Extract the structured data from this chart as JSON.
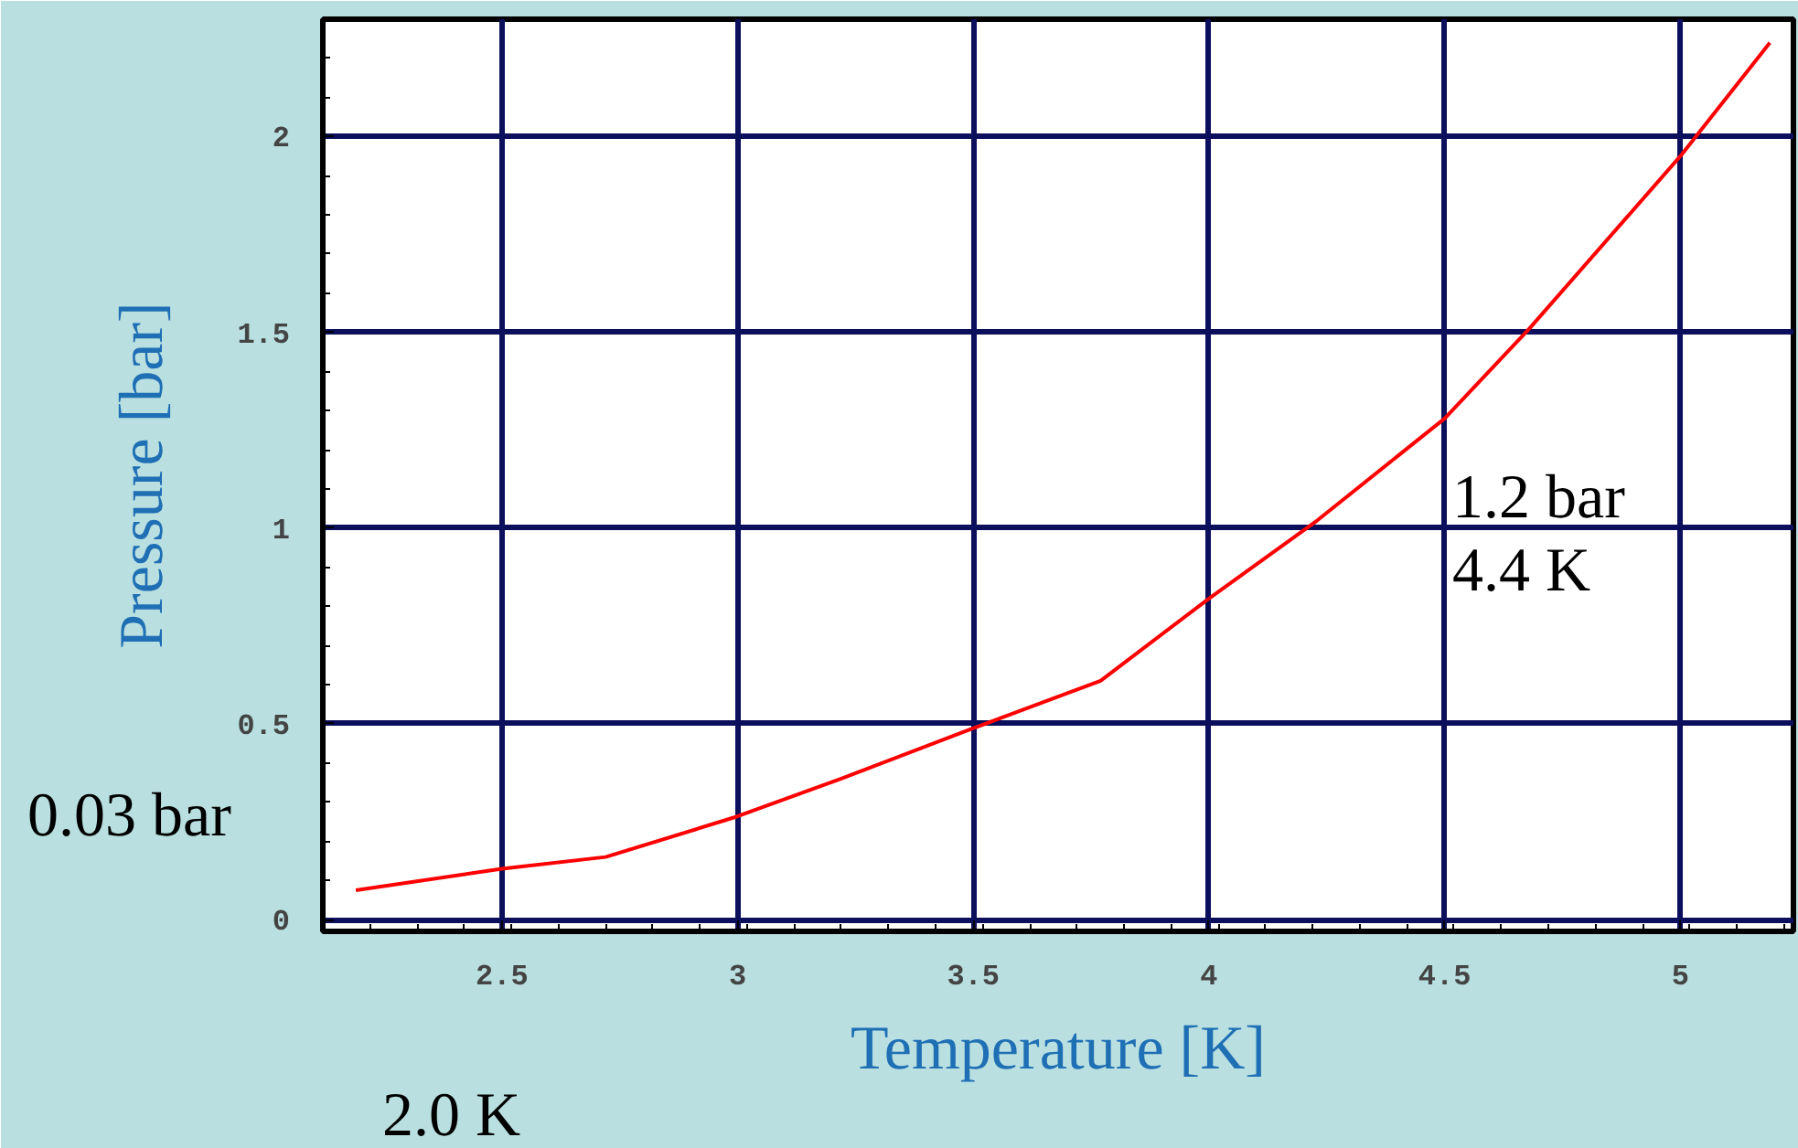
{
  "chart_data": {
    "type": "line",
    "xlabel": "Temperature [K]",
    "ylabel": "Pressure [bar]",
    "x": [
      2.19,
      2.5,
      2.72,
      2.99,
      3.22,
      3.48,
      3.77,
      4.0,
      4.23,
      4.5,
      4.68,
      5.0,
      5.19
    ],
    "series": [
      {
        "color": "#ff0000",
        "values": [
          0.075,
          0.13,
          0.16,
          0.26,
          0.36,
          0.48,
          0.61,
          0.82,
          1.02,
          1.28,
          1.51,
          1.95,
          2.24
        ]
      }
    ],
    "xlim": [
      2.12,
      5.24
    ],
    "ylim": [
      -0.03,
      2.3
    ],
    "xticks": [
      2.5,
      3,
      3.5,
      4,
      4.5,
      5
    ],
    "yticks": [
      0,
      0.5,
      1,
      1.5,
      2
    ],
    "grid": true,
    "marker": "none",
    "line_style": "solid",
    "annotations": [
      "0.03 bar",
      "2.0 K",
      {
        "text": "1.2 bar",
        "x": 4.4,
        "y": 1.2
      },
      {
        "text": "4.4 K",
        "x": 4.4,
        "y": 1.2
      }
    ]
  }
}
